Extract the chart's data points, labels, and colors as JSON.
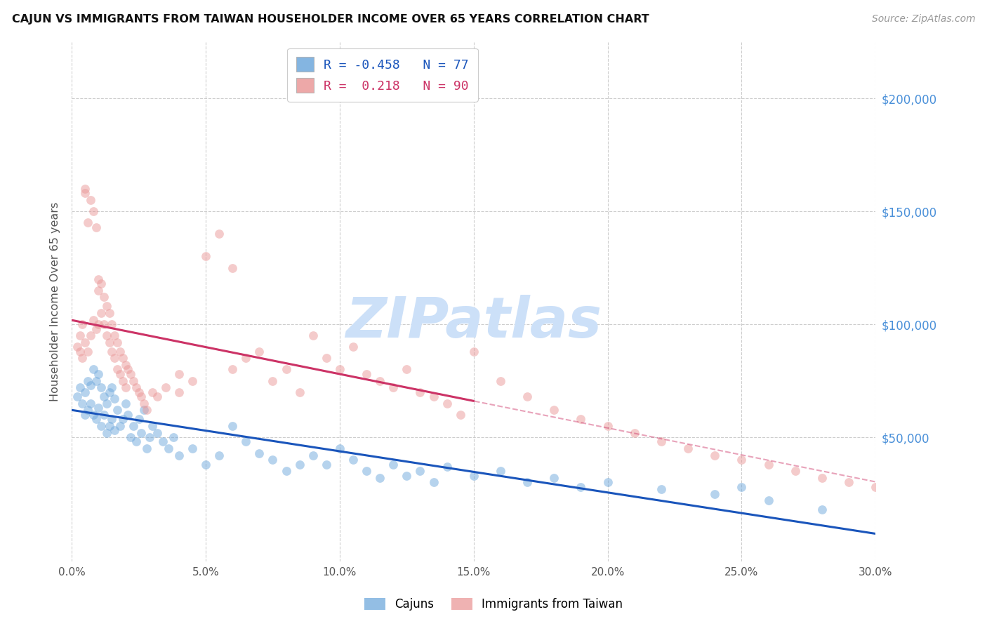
{
  "title": "CAJUN VS IMMIGRANTS FROM TAIWAN HOUSEHOLDER INCOME OVER 65 YEARS CORRELATION CHART",
  "source": "Source: ZipAtlas.com",
  "ylabel": "Householder Income Over 65 years",
  "xlabel_ticks": [
    "0.0%",
    "5.0%",
    "10.0%",
    "15.0%",
    "20.0%",
    "25.0%",
    "30.0%"
  ],
  "xlabel_vals": [
    0.0,
    5.0,
    10.0,
    15.0,
    20.0,
    25.0,
    30.0
  ],
  "ytick_labels": [
    "$200,000",
    "$150,000",
    "$100,000",
    "$50,000"
  ],
  "ytick_vals": [
    200000,
    150000,
    100000,
    50000
  ],
  "cajun_color": "#6fa8dc",
  "taiwan_color": "#ea9999",
  "cajun_line_color": "#1a55bb",
  "taiwan_line_color": "#cc3366",
  "watermark_text": "ZIPatlas",
  "watermark_color": "#cce0f8",
  "legend_r_cajun": "-0.458",
  "legend_n_cajun": "77",
  "legend_r_taiwan": "0.218",
  "legend_n_taiwan": "90",
  "cajun_x": [
    0.2,
    0.3,
    0.4,
    0.5,
    0.5,
    0.6,
    0.6,
    0.7,
    0.7,
    0.8,
    0.8,
    0.9,
    0.9,
    1.0,
    1.0,
    1.1,
    1.1,
    1.2,
    1.2,
    1.3,
    1.3,
    1.4,
    1.4,
    1.5,
    1.5,
    1.6,
    1.6,
    1.7,
    1.8,
    1.9,
    2.0,
    2.1,
    2.2,
    2.3,
    2.4,
    2.5,
    2.6,
    2.7,
    2.8,
    2.9,
    3.0,
    3.2,
    3.4,
    3.6,
    3.8,
    4.0,
    4.5,
    5.0,
    5.5,
    6.0,
    6.5,
    7.0,
    7.5,
    8.0,
    8.5,
    9.0,
    9.5,
    10.0,
    10.5,
    11.0,
    11.5,
    12.0,
    12.5,
    13.0,
    13.5,
    14.0,
    15.0,
    16.0,
    17.0,
    18.0,
    19.0,
    20.0,
    22.0,
    24.0,
    25.0,
    26.0,
    28.0
  ],
  "cajun_y": [
    68000,
    72000,
    65000,
    70000,
    60000,
    75000,
    62000,
    73000,
    65000,
    80000,
    60000,
    75000,
    58000,
    78000,
    63000,
    72000,
    55000,
    68000,
    60000,
    65000,
    52000,
    70000,
    55000,
    72000,
    58000,
    67000,
    53000,
    62000,
    55000,
    58000,
    65000,
    60000,
    50000,
    55000,
    48000,
    58000,
    52000,
    62000,
    45000,
    50000,
    55000,
    52000,
    48000,
    45000,
    50000,
    42000,
    45000,
    38000,
    42000,
    55000,
    48000,
    43000,
    40000,
    35000,
    38000,
    42000,
    38000,
    45000,
    40000,
    35000,
    32000,
    38000,
    33000,
    35000,
    30000,
    37000,
    33000,
    35000,
    30000,
    32000,
    28000,
    30000,
    27000,
    25000,
    28000,
    22000,
    18000
  ],
  "taiwan_x": [
    0.2,
    0.3,
    0.3,
    0.4,
    0.4,
    0.5,
    0.5,
    0.5,
    0.6,
    0.6,
    0.7,
    0.7,
    0.8,
    0.8,
    0.9,
    0.9,
    1.0,
    1.0,
    1.0,
    1.1,
    1.1,
    1.2,
    1.2,
    1.3,
    1.3,
    1.4,
    1.4,
    1.5,
    1.5,
    1.6,
    1.6,
    1.7,
    1.7,
    1.8,
    1.8,
    1.9,
    1.9,
    2.0,
    2.0,
    2.1,
    2.2,
    2.3,
    2.4,
    2.5,
    2.6,
    2.7,
    2.8,
    3.0,
    3.2,
    3.5,
    4.0,
    4.5,
    5.0,
    5.5,
    6.0,
    6.5,
    7.0,
    7.5,
    8.0,
    8.5,
    9.0,
    9.5,
    10.0,
    10.5,
    11.0,
    11.5,
    12.0,
    12.5,
    13.0,
    13.5,
    14.0,
    14.5,
    15.0,
    16.0,
    17.0,
    18.0,
    19.0,
    20.0,
    21.0,
    22.0,
    23.0,
    24.0,
    25.0,
    26.0,
    27.0,
    28.0,
    29.0,
    30.0,
    4.0,
    6.0
  ],
  "taiwan_y": [
    90000,
    95000,
    88000,
    100000,
    85000,
    158000,
    160000,
    92000,
    145000,
    88000,
    155000,
    95000,
    150000,
    102000,
    143000,
    98000,
    120000,
    115000,
    100000,
    118000,
    105000,
    112000,
    100000,
    108000,
    95000,
    105000,
    92000,
    100000,
    88000,
    95000,
    85000,
    92000,
    80000,
    88000,
    78000,
    85000,
    75000,
    82000,
    72000,
    80000,
    78000,
    75000,
    72000,
    70000,
    68000,
    65000,
    62000,
    70000,
    68000,
    72000,
    78000,
    75000,
    130000,
    140000,
    125000,
    85000,
    88000,
    75000,
    80000,
    70000,
    95000,
    85000,
    80000,
    90000,
    78000,
    75000,
    72000,
    80000,
    70000,
    68000,
    65000,
    60000,
    88000,
    75000,
    68000,
    62000,
    58000,
    55000,
    52000,
    48000,
    45000,
    42000,
    40000,
    38000,
    35000,
    32000,
    30000,
    28000,
    70000,
    80000
  ]
}
